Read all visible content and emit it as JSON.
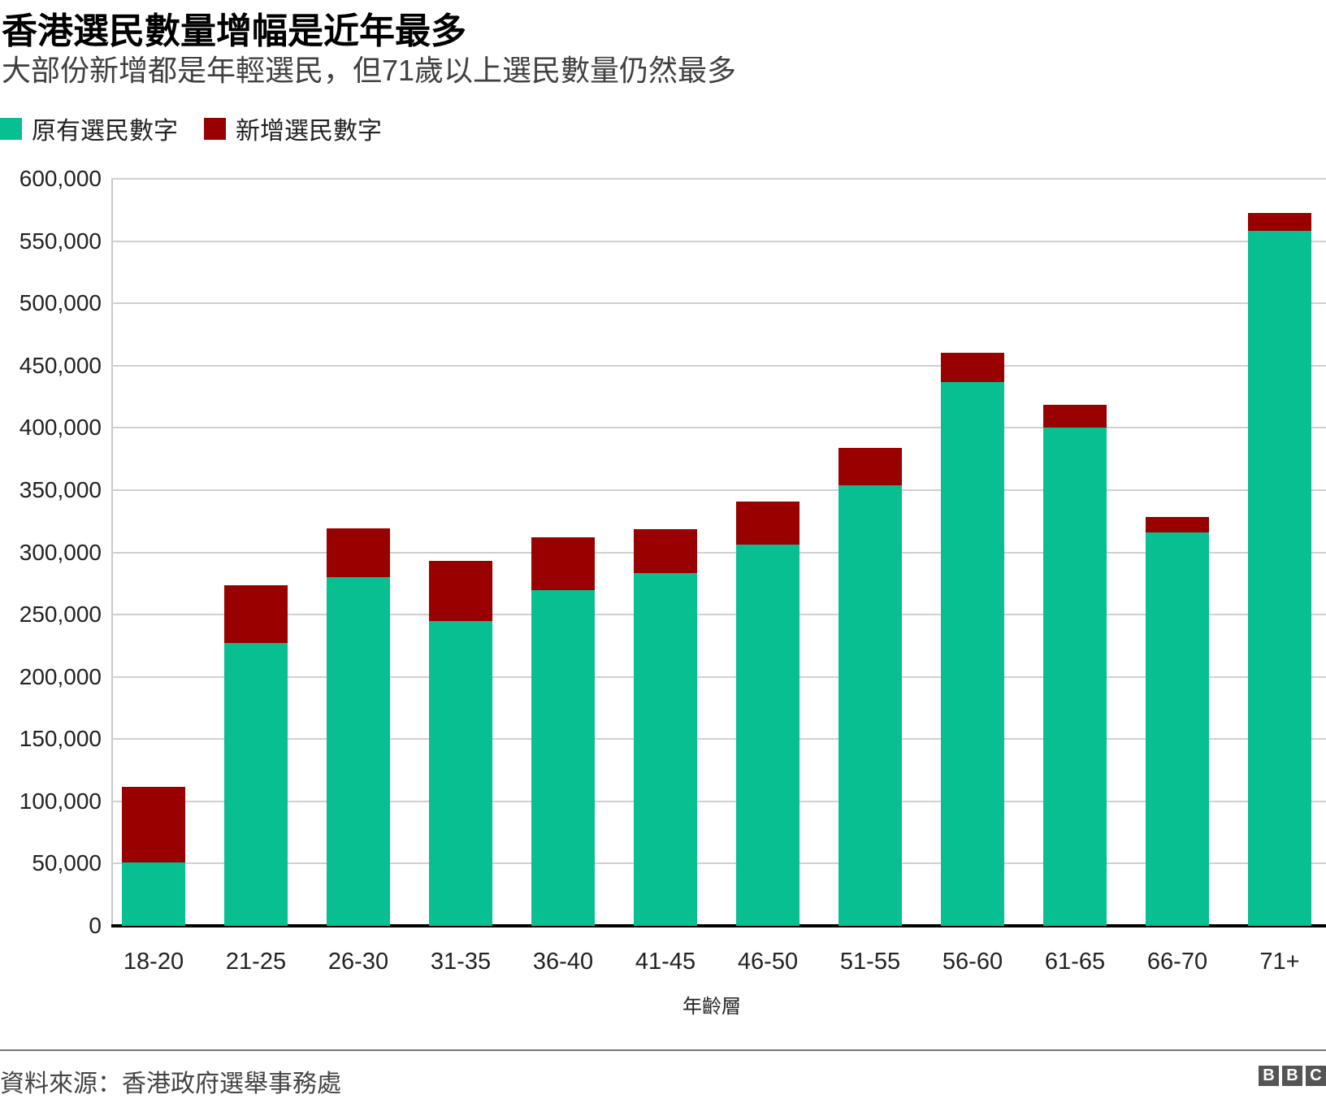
{
  "header": {
    "title": "香港選民數量增幅是近年最多",
    "subtitle": "大部份新增都是年輕選民，但71歲以上選民數量仍然最多"
  },
  "legend": [
    {
      "label": "原有選民數字",
      "color": "#07bf91"
    },
    {
      "label": "新增選民數字",
      "color": "#990000"
    }
  ],
  "footer": {
    "source": "資料來源：香港政府選舉事務處",
    "logo_letters": [
      "B",
      "B",
      "C"
    ]
  },
  "chart_data": {
    "type": "bar",
    "stacked": true,
    "title": "香港選民數量增幅是近年最多",
    "subtitle": "大部份新增都是年輕選民，但71歲以上選民數量仍然最多",
    "xlabel": "年齡層",
    "ylabel": "",
    "ylim": [
      0,
      600000
    ],
    "yticks": [
      0,
      50000,
      100000,
      150000,
      200000,
      250000,
      300000,
      350000,
      400000,
      450000,
      500000,
      550000,
      600000
    ],
    "ytick_labels": [
      "0",
      "50,000",
      "100,000",
      "150,000",
      "200,000",
      "250,000",
      "300,000",
      "350,000",
      "400,000",
      "450,000",
      "500,000",
      "550,000",
      "600,000"
    ],
    "grid": true,
    "legend_position": "top-left",
    "categories": [
      "18-20",
      "21-25",
      "26-30",
      "31-35",
      "36-40",
      "41-45",
      "46-50",
      "51-55",
      "56-60",
      "61-65",
      "66-70",
      "71+"
    ],
    "series": [
      {
        "name": "原有選民數字",
        "color": "#07bf91",
        "values": [
          51000,
          227500,
          280300,
          244700,
          269800,
          283300,
          306200,
          353700,
          436600,
          400000,
          315800,
          557900
        ]
      },
      {
        "name": "新增選民數字",
        "color": "#990000",
        "values": [
          60500,
          46300,
          39000,
          48700,
          42100,
          35600,
          34600,
          30300,
          23700,
          18400,
          12900,
          14500
        ]
      }
    ],
    "source": "資料來源：香港政府選舉事務處"
  }
}
